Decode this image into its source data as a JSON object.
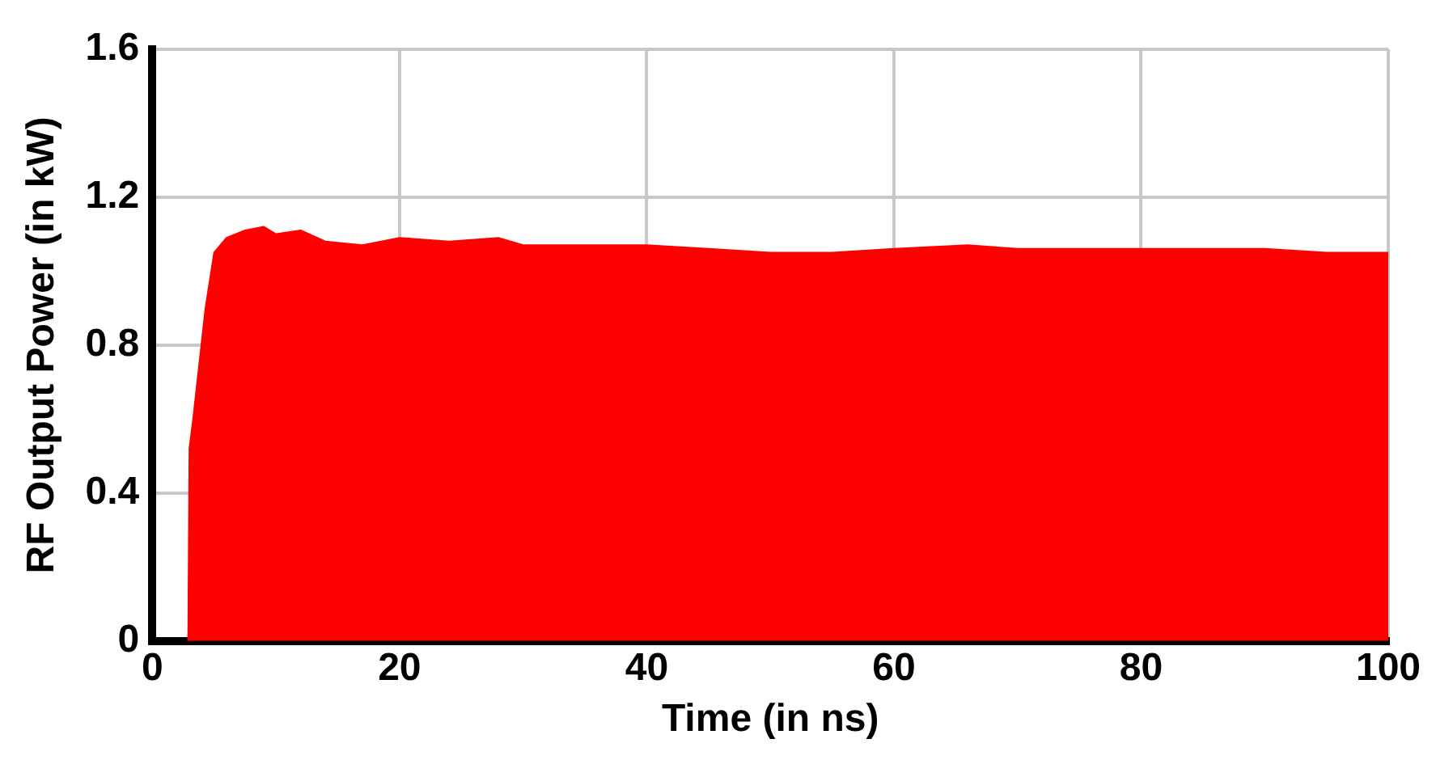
{
  "chart_data": {
    "type": "area",
    "xlabel": "Time (in ns)",
    "ylabel": "RF Output Power (in kW)",
    "x": [
      2.9,
      3.0,
      3.3,
      3.8,
      4.3,
      5.0,
      6,
      7.5,
      9,
      10,
      12,
      14,
      17,
      20,
      24,
      28,
      30,
      35,
      40,
      45,
      50,
      55,
      60,
      66,
      70,
      75,
      80,
      85,
      90,
      95,
      100
    ],
    "series": [
      {
        "color": "#ff0000",
        "values": [
          0,
          0.52,
          0.6,
          0.75,
          0.9,
          1.05,
          1.09,
          1.11,
          1.12,
          1.1,
          1.11,
          1.08,
          1.07,
          1.09,
          1.08,
          1.09,
          1.07,
          1.07,
          1.07,
          1.06,
          1.05,
          1.05,
          1.06,
          1.07,
          1.06,
          1.06,
          1.06,
          1.06,
          1.06,
          1.05,
          1.05
        ]
      }
    ],
    "xlim": [
      0,
      100
    ],
    "xticks": [
      0,
      20,
      40,
      60,
      80,
      100
    ],
    "ylim": [
      0,
      1.6
    ],
    "yticks": [
      0,
      0.4,
      0.8,
      1.2,
      1.6
    ],
    "grid": true,
    "legend": false
  }
}
